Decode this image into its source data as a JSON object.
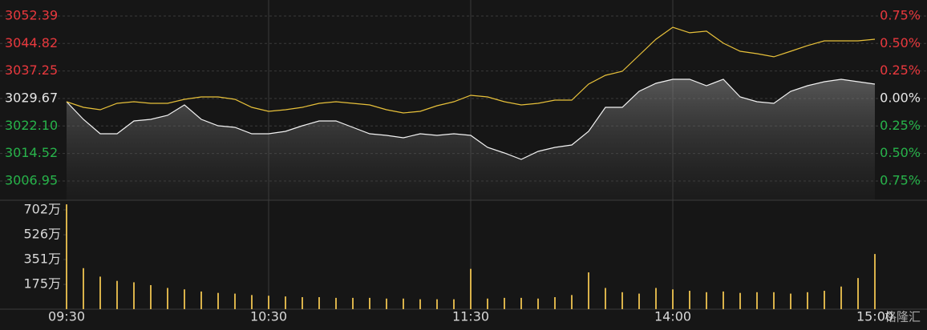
{
  "chart_data": [
    {
      "type": "line",
      "x": [
        0,
        5,
        10,
        15,
        20,
        25,
        30,
        35,
        40,
        45,
        50,
        55,
        60,
        65,
        70,
        75,
        80,
        85,
        90,
        95,
        100,
        105,
        110,
        115,
        120,
        125,
        130,
        135,
        140,
        145,
        150,
        155,
        160,
        165,
        170,
        175,
        180,
        185,
        190,
        195,
        200,
        205,
        210,
        215,
        220,
        225,
        230,
        235,
        240
      ],
      "xlim": [
        0,
        240
      ],
      "series": [
        {
          "color": "#f2f2f2",
          "area": true,
          "values": [
            3028.79,
            3023.93,
            3019.96,
            3019.96,
            3023.49,
            3023.93,
            3025.04,
            3027.9,
            3023.93,
            3022.17,
            3021.72,
            3019.96,
            3019.96,
            3020.62,
            3022.17,
            3023.49,
            3023.49,
            3021.72,
            3019.96,
            3019.52,
            3018.86,
            3019.96,
            3019.52,
            3019.96,
            3019.52,
            3016.21,
            3014.66,
            3012.9,
            3015.1,
            3016.21,
            3016.87,
            3020.62,
            3027.24,
            3027.24,
            3031.66,
            3033.86,
            3034.97,
            3034.97,
            3033.2,
            3034.97,
            3030.11,
            3028.79,
            3028.35,
            3031.66,
            3033.2,
            3034.3,
            3034.97,
            3034.3,
            3033.64
          ]
        },
        {
          "color": "#e8c13a",
          "values": [
            3028.79,
            3027.24,
            3026.58,
            3028.35,
            3028.79,
            3028.35,
            3028.35,
            3029.45,
            3030.11,
            3030.11,
            3029.45,
            3027.24,
            3026.14,
            3026.58,
            3027.24,
            3028.35,
            3028.79,
            3028.35,
            3027.9,
            3026.58,
            3025.7,
            3026.14,
            3027.68,
            3028.79,
            3030.55,
            3030.11,
            3028.79,
            3027.9,
            3028.35,
            3029.23,
            3029.23,
            3033.64,
            3036.07,
            3037.17,
            3041.59,
            3046.0,
            3049.31,
            3047.77,
            3048.21,
            3044.9,
            3042.69,
            3042.03,
            3041.15,
            3042.69,
            3044.24,
            3045.56,
            3045.56,
            3045.56,
            3046.0
          ]
        }
      ],
      "ylim": [
        3001.65,
        3056.36
      ],
      "yticks": [
        3052.39,
        3044.82,
        3037.25,
        3029.67,
        {
          "value": 3022.1,
          "label": "3022.10"
        },
        3014.52,
        3006.95
      ],
      "y2lim": [
        -0.925,
        0.881
      ],
      "y2ticks": [
        {
          "value": 0.75,
          "label": "0.75%"
        },
        {
          "value": 0.5,
          "label": "0.50%"
        },
        {
          "value": 0.25,
          "label": "0.25%"
        },
        {
          "value": 0,
          "label": "0.00%"
        },
        {
          "value": -0.25,
          "label": "0.25%"
        },
        {
          "value": -0.5,
          "label": "0.50%"
        },
        {
          "value": -0.75,
          "label": "0.75%"
        }
      ],
      "up_color": "#e8383d",
      "down_color": "#27b34a",
      "flat_color": "#e6e6e6",
      "grid": true
    },
    {
      "type": "bar",
      "x": [
        0,
        5,
        10,
        15,
        20,
        25,
        30,
        35,
        40,
        45,
        50,
        55,
        60,
        65,
        70,
        75,
        80,
        85,
        90,
        95,
        100,
        105,
        110,
        115,
        120,
        125,
        130,
        135,
        140,
        145,
        150,
        155,
        160,
        165,
        170,
        175,
        180,
        185,
        190,
        195,
        200,
        205,
        210,
        215,
        220,
        225,
        230,
        235,
        240
      ],
      "xlim": [
        0,
        240
      ],
      "xticks": [
        {
          "value": 0,
          "label": "09:30"
        },
        {
          "value": 60,
          "label": "10:30"
        },
        {
          "value": 120,
          "label": "11:30"
        },
        {
          "value": 180,
          "label": "14:00"
        },
        {
          "value": 240,
          "label": "15:00"
        }
      ],
      "values": [
        741,
        290,
        230,
        200,
        190,
        170,
        150,
        140,
        125,
        115,
        110,
        100,
        95,
        90,
        85,
        85,
        80,
        80,
        80,
        75,
        75,
        70,
        70,
        70,
        285,
        75,
        80,
        80,
        75,
        85,
        100,
        260,
        150,
        120,
        110,
        150,
        140,
        130,
        120,
        125,
        115,
        120,
        120,
        110,
        120,
        130,
        160,
        220,
        390
      ],
      "color": "#d9b24a",
      "ylim": [
        0,
        770
      ],
      "yticks": [
        {
          "value": 702,
          "label": "702万"
        },
        {
          "value": 526,
          "label": "526万"
        },
        {
          "value": 351,
          "label": "351万"
        },
        {
          "value": 175,
          "label": "175万"
        }
      ]
    }
  ],
  "watermark": "格隆汇"
}
